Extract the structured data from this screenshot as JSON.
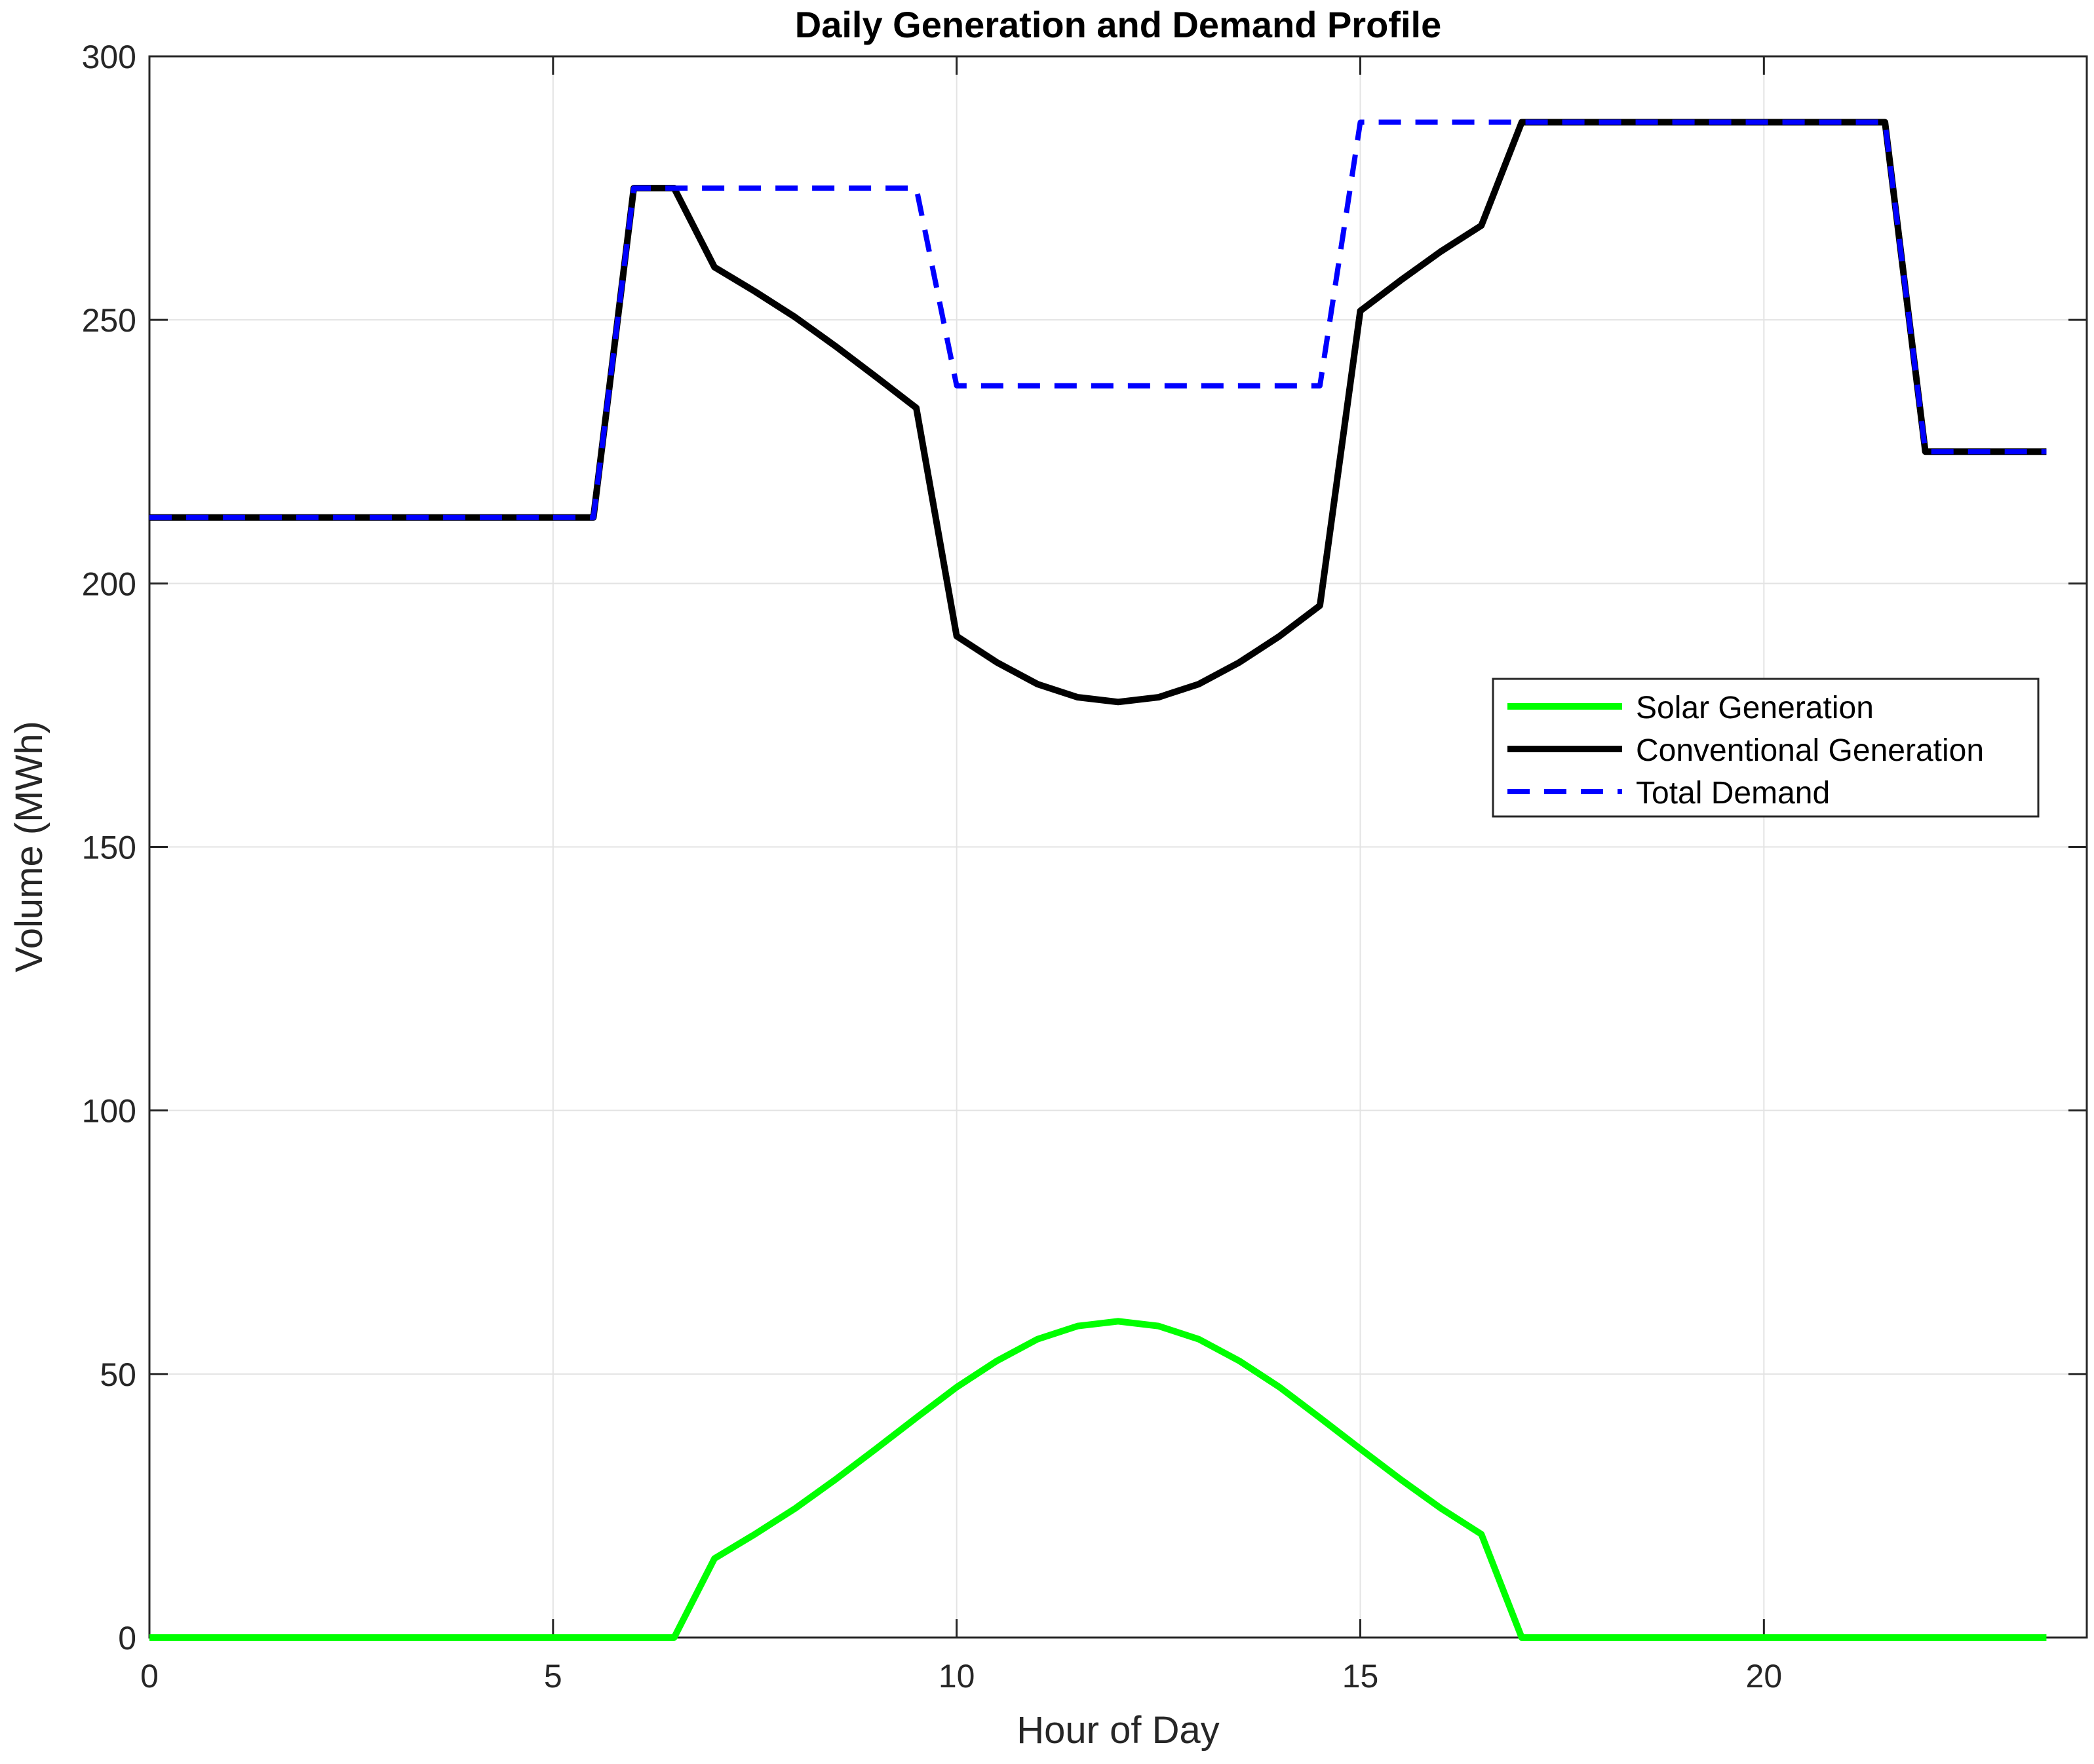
{
  "chart_data": {
    "type": "line",
    "title": "Daily Generation and Demand Profile",
    "xlabel": "Hour of Day",
    "ylabel": "Volume (MWh)",
    "xlim": [
      0,
      24
    ],
    "ylim": [
      0,
      300
    ],
    "xticks": [
      0,
      5,
      10,
      15,
      20
    ],
    "yticks": [
      0,
      50,
      100,
      150,
      200,
      250,
      300
    ],
    "grid": true,
    "legend_position": "right",
    "x": [
      0,
      0.5,
      1,
      1.5,
      2,
      2.5,
      3,
      3.5,
      4,
      4.5,
      5,
      5.5,
      6,
      6.5,
      7,
      7.5,
      8,
      8.5,
      9,
      9.5,
      10,
      10.5,
      11,
      11.5,
      12,
      12.5,
      13,
      13.5,
      14,
      14.5,
      15,
      15.5,
      16,
      16.5,
      17,
      17.5,
      18,
      18.5,
      19,
      19.5,
      20,
      20.5,
      21,
      21.5,
      22,
      22.5,
      23,
      23.5
    ],
    "series": [
      {
        "name": "Solar Generation",
        "color": "#00ff00",
        "dash": "solid",
        "values": [
          0,
          0,
          0,
          0,
          0,
          0,
          0,
          0,
          0,
          0,
          0,
          0,
          0,
          0,
          15,
          19.6,
          24.5,
          30,
          35.8,
          41.7,
          47.5,
          52.5,
          56.6,
          59.1,
          60,
          59.1,
          56.6,
          52.5,
          47.5,
          41.7,
          35.8,
          30,
          24.5,
          19.6,
          0,
          0,
          0,
          0,
          0,
          0,
          0,
          0,
          0,
          0,
          0,
          0,
          0,
          0
        ]
      },
      {
        "name": "Conventional Generation",
        "color": "#000000",
        "dash": "solid",
        "values": [
          212.5,
          212.5,
          212.5,
          212.5,
          212.5,
          212.5,
          212.5,
          212.5,
          212.5,
          212.5,
          212.5,
          212.5,
          275,
          275,
          260,
          255.4,
          250.5,
          245,
          239.2,
          233.3,
          190,
          185,
          180.9,
          178.4,
          177.5,
          178.4,
          180.9,
          185,
          190,
          195.8,
          251.7,
          257.5,
          263,
          267.9,
          287.5,
          287.5,
          287.5,
          287.5,
          287.5,
          287.5,
          287.5,
          287.5,
          287.5,
          287.5,
          225,
          225,
          225,
          225
        ]
      },
      {
        "name": "Total Demand",
        "color": "#0000ff",
        "dash": "dashed",
        "values": [
          212.5,
          212.5,
          212.5,
          212.5,
          212.5,
          212.5,
          212.5,
          212.5,
          212.5,
          212.5,
          212.5,
          212.5,
          275,
          275,
          275,
          275,
          275,
          275,
          275,
          275,
          237.5,
          237.5,
          237.5,
          237.5,
          237.5,
          237.5,
          237.5,
          237.5,
          237.5,
          237.5,
          287.5,
          287.5,
          287.5,
          287.5,
          287.5,
          287.5,
          287.5,
          287.5,
          287.5,
          287.5,
          287.5,
          287.5,
          287.5,
          287.5,
          225,
          225,
          225,
          225
        ]
      }
    ]
  }
}
